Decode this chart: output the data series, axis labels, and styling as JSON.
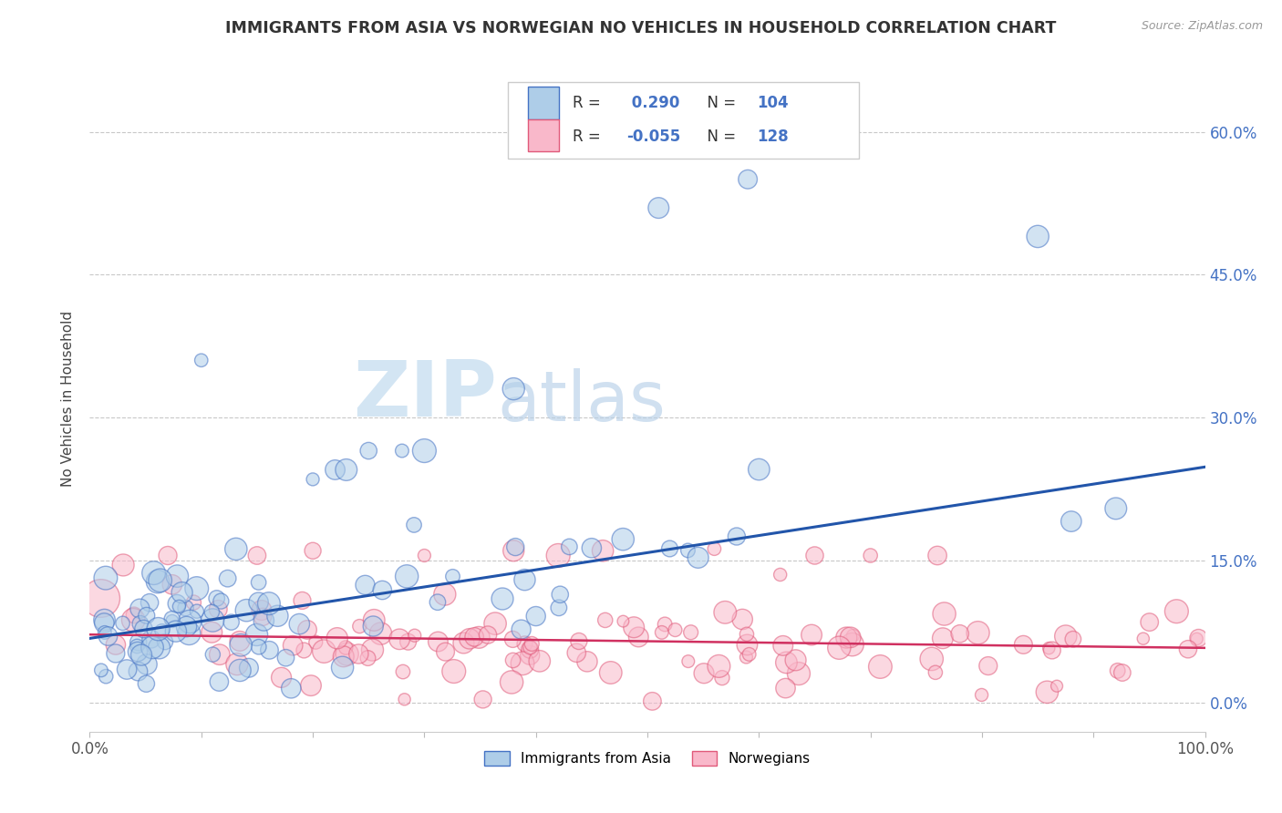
{
  "title": "IMMIGRANTS FROM ASIA VS NORWEGIAN NO VEHICLES IN HOUSEHOLD CORRELATION CHART",
  "source_text": "Source: ZipAtlas.com",
  "ylabel": "No Vehicles in Household",
  "xlim": [
    0.0,
    1.0
  ],
  "ylim": [
    -0.03,
    0.67
  ],
  "yticks": [
    0.0,
    0.15,
    0.3,
    0.45,
    0.6
  ],
  "ytick_labels": [
    "0.0%",
    "15.0%",
    "30.0%",
    "45.0%",
    "60.0%"
  ],
  "grid_color": "#c8c8c8",
  "background_color": "#ffffff",
  "blue_fill_color": "#aecde8",
  "blue_edge_color": "#4472c4",
  "pink_fill_color": "#f9b8ca",
  "pink_edge_color": "#e05a7a",
  "blue_line_color": "#2255aa",
  "pink_line_color": "#d03060",
  "legend_label_blue": "Immigrants from Asia",
  "legend_label_pink": "Norwegians",
  "r_blue": 0.29,
  "n_blue": 104,
  "r_pink": -0.055,
  "n_pink": 128,
  "blue_trend_y_start": 0.068,
  "blue_trend_y_end": 0.248,
  "pink_trend_y_start": 0.072,
  "pink_trend_y_end": 0.058,
  "title_color": "#333333",
  "axis_label_color": "#444444",
  "tick_label_color": "#555555",
  "right_tick_color": "#4472c4",
  "source_color": "#999999",
  "legend_text_color": "#333333",
  "legend_value_color": "#4472c4"
}
